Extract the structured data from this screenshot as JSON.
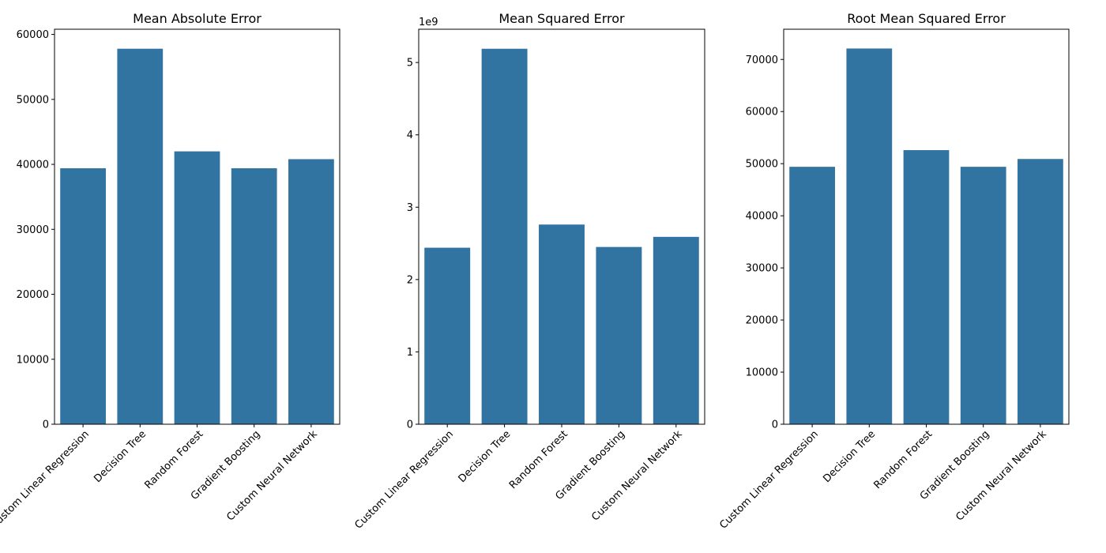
{
  "chart_data": [
    {
      "type": "bar",
      "title": "Mean Absolute Error",
      "xlabel": "",
      "ylabel": "",
      "categories": [
        "Custom Linear Regression",
        "Decision Tree",
        "Random Forest",
        "Gradient Boosting",
        "Custom Neural Network"
      ],
      "values": [
        39400,
        57800,
        42000,
        39400,
        40800
      ],
      "ylim": [
        0,
        60800
      ],
      "yticks": [
        0,
        10000,
        20000,
        30000,
        40000,
        50000,
        60000
      ],
      "ytick_labels": [
        "0",
        "10000",
        "20000",
        "30000",
        "40000",
        "50000",
        "60000"
      ],
      "offset_text": "",
      "bar_color": "#3274a1",
      "grid": false,
      "legend": "none"
    },
    {
      "type": "bar",
      "title": "Mean Squared Error",
      "xlabel": "",
      "ylabel": "",
      "categories": [
        "Custom Linear Regression",
        "Decision Tree",
        "Random Forest",
        "Gradient Boosting",
        "Custom Neural Network"
      ],
      "values": [
        2440000000,
        5190000000,
        2760000000,
        2450000000,
        2590000000
      ],
      "ylim": [
        0,
        5460000000
      ],
      "yticks": [
        0,
        1000000000,
        2000000000,
        3000000000,
        4000000000,
        5000000000
      ],
      "ytick_labels": [
        "0",
        "1",
        "2",
        "3",
        "4",
        "5"
      ],
      "offset_text": "1e9",
      "bar_color": "#3274a1",
      "grid": false,
      "legend": "none"
    },
    {
      "type": "bar",
      "title": "Root Mean Squared Error",
      "xlabel": "",
      "ylabel": "",
      "categories": [
        "Custom Linear Regression",
        "Decision Tree",
        "Random Forest",
        "Gradient Boosting",
        "Custom Neural Network"
      ],
      "values": [
        49400,
        72100,
        52600,
        49400,
        50900
      ],
      "ylim": [
        0,
        75800
      ],
      "yticks": [
        0,
        10000,
        20000,
        30000,
        40000,
        50000,
        60000,
        70000
      ],
      "ytick_labels": [
        "0",
        "10000",
        "20000",
        "30000",
        "40000",
        "50000",
        "60000",
        "70000"
      ],
      "offset_text": "",
      "bar_color": "#3274a1",
      "grid": false,
      "legend": "none"
    }
  ]
}
